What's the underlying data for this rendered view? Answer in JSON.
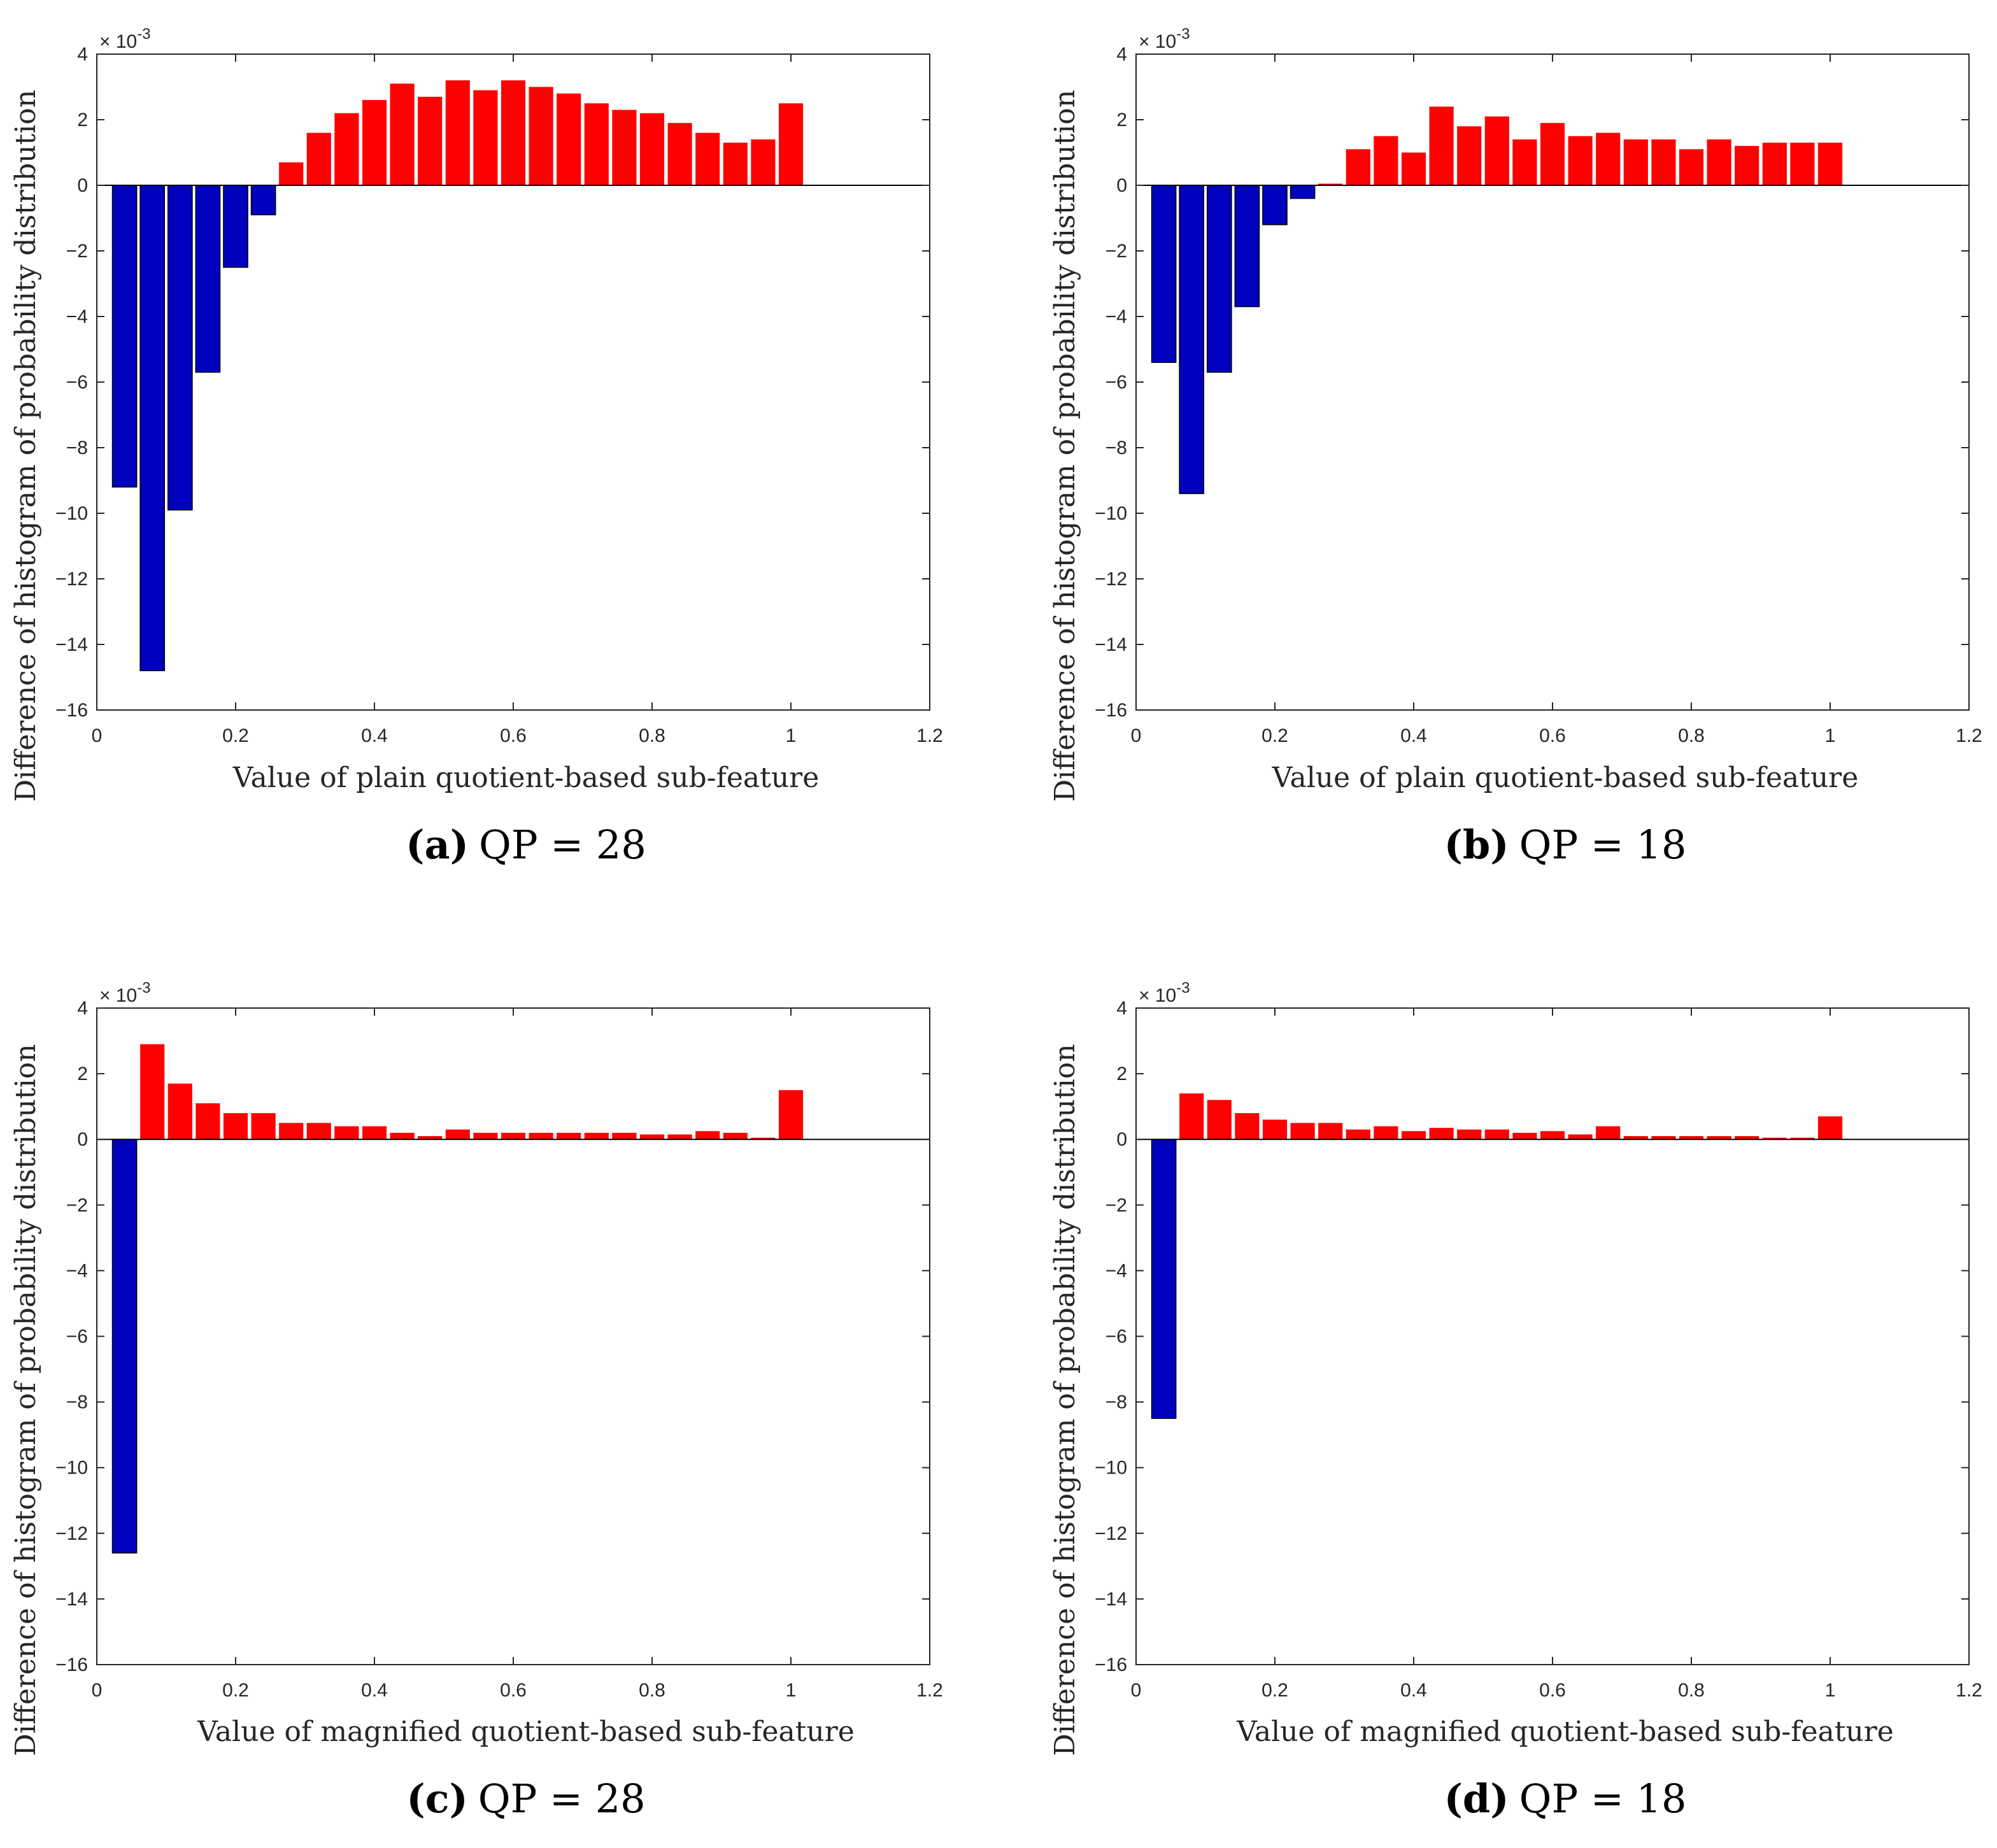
{
  "colors": {
    "negative": "#0000bf",
    "positive": "#ff0000",
    "axis": "#262626"
  },
  "chart_data": [
    {
      "type": "bar",
      "caption_label": "(a)",
      "caption_text": "QP = 28",
      "xlabel": "Value of plain quotient-based sub-feature",
      "ylabel": "Difference of histogram of probability distribution",
      "exponent_label": "× 10",
      "exponent_power": "-3",
      "xlim": [
        0,
        1.2
      ],
      "ylim": [
        -16,
        4
      ],
      "xticks": [
        "0",
        "0.2",
        "0.4",
        "0.6",
        "0.8",
        "1",
        "1.2"
      ],
      "yticks": [
        "4",
        "2",
        "0",
        "−2",
        "−4",
        "−6",
        "−8",
        "−10",
        "−12",
        "−14",
        "−16"
      ],
      "bar_width": 0.035,
      "x": [
        0.04,
        0.08,
        0.12,
        0.16,
        0.2,
        0.24,
        0.28,
        0.32,
        0.36,
        0.4,
        0.44,
        0.48,
        0.52,
        0.56,
        0.6,
        0.64,
        0.68,
        0.72,
        0.76,
        0.8,
        0.84,
        0.88,
        0.92,
        0.96,
        1.0
      ],
      "values": [
        -9.2,
        -14.8,
        -9.9,
        -5.7,
        -2.5,
        -0.9,
        0.7,
        1.6,
        2.2,
        2.6,
        3.1,
        2.7,
        3.2,
        2.9,
        3.2,
        3.0,
        2.8,
        2.5,
        2.3,
        2.2,
        1.9,
        1.6,
        1.3,
        1.4,
        2.5
      ]
    },
    {
      "type": "bar",
      "caption_label": "(b)",
      "caption_text": "QP = 18",
      "xlabel": "Value of plain quotient-based sub-feature",
      "ylabel": "Difference of histogram of probability distribution",
      "exponent_label": "× 10",
      "exponent_power": "-3",
      "xlim": [
        0,
        1.2
      ],
      "ylim": [
        -16,
        4
      ],
      "xticks": [
        "0",
        "0.2",
        "0.4",
        "0.6",
        "0.8",
        "1",
        "1.2"
      ],
      "yticks": [
        "4",
        "2",
        "0",
        "−2",
        "−4",
        "−6",
        "−8",
        "−10",
        "−12",
        "−14",
        "−16"
      ],
      "bar_width": 0.035,
      "x": [
        0.04,
        0.08,
        0.12,
        0.16,
        0.2,
        0.24,
        0.28,
        0.32,
        0.36,
        0.4,
        0.44,
        0.48,
        0.52,
        0.56,
        0.6,
        0.64,
        0.68,
        0.72,
        0.76,
        0.8,
        0.84,
        0.88,
        0.92,
        0.96,
        1.0
      ],
      "values": [
        -5.4,
        -9.4,
        -5.7,
        -3.7,
        -1.2,
        -0.4,
        0.05,
        1.1,
        1.5,
        1.0,
        2.4,
        1.8,
        2.1,
        1.4,
        1.9,
        1.5,
        1.6,
        1.4,
        1.4,
        1.1,
        1.4,
        1.2,
        1.3,
        1.3,
        1.3
      ]
    },
    {
      "type": "bar",
      "caption_label": "(c)",
      "caption_text": "QP = 28",
      "xlabel": "Value of magnified quotient-based sub-feature",
      "ylabel": "Difference of histogram of probability distribution",
      "exponent_label": "× 10",
      "exponent_power": "-3",
      "xlim": [
        0,
        1.2
      ],
      "ylim": [
        -16,
        4
      ],
      "xticks": [
        "0",
        "0.2",
        "0.4",
        "0.6",
        "0.8",
        "1",
        "1.2"
      ],
      "yticks": [
        "4",
        "2",
        "0",
        "−2",
        "−4",
        "−6",
        "−8",
        "−10",
        "−12",
        "−14",
        "−16"
      ],
      "bar_width": 0.035,
      "x": [
        0.04,
        0.08,
        0.12,
        0.16,
        0.2,
        0.24,
        0.28,
        0.32,
        0.36,
        0.4,
        0.44,
        0.48,
        0.52,
        0.56,
        0.6,
        0.64,
        0.68,
        0.72,
        0.76,
        0.8,
        0.84,
        0.88,
        0.92,
        0.96,
        1.0
      ],
      "values": [
        -12.6,
        2.9,
        1.7,
        1.1,
        0.8,
        0.8,
        0.5,
        0.5,
        0.4,
        0.4,
        0.2,
        0.1,
        0.3,
        0.2,
        0.2,
        0.2,
        0.2,
        0.2,
        0.2,
        0.15,
        0.15,
        0.25,
        0.2,
        0.05,
        1.5
      ]
    },
    {
      "type": "bar",
      "caption_label": "(d)",
      "caption_text": "QP = 18",
      "xlabel": "Value of magnified quotient-based sub-feature",
      "ylabel": "Difference of histogram of probability distribution",
      "exponent_label": "× 10",
      "exponent_power": "-3",
      "xlim": [
        0,
        1.2
      ],
      "ylim": [
        -16,
        4
      ],
      "xticks": [
        "0",
        "0.2",
        "0.4",
        "0.6",
        "0.8",
        "1",
        "1.2"
      ],
      "yticks": [
        "4",
        "2",
        "0",
        "−2",
        "−4",
        "−6",
        "−8",
        "−10",
        "−12",
        "−14",
        "−16"
      ],
      "bar_width": 0.035,
      "x": [
        0.04,
        0.08,
        0.12,
        0.16,
        0.2,
        0.24,
        0.28,
        0.32,
        0.36,
        0.4,
        0.44,
        0.48,
        0.52,
        0.56,
        0.6,
        0.64,
        0.68,
        0.72,
        0.76,
        0.8,
        0.84,
        0.88,
        0.92,
        0.96,
        1.0
      ],
      "values": [
        -8.5,
        1.4,
        1.2,
        0.8,
        0.6,
        0.5,
        0.5,
        0.3,
        0.4,
        0.25,
        0.35,
        0.3,
        0.3,
        0.2,
        0.25,
        0.15,
        0.4,
        0.1,
        0.1,
        0.1,
        0.1,
        0.1,
        0.05,
        0.05,
        0.7
      ]
    }
  ]
}
